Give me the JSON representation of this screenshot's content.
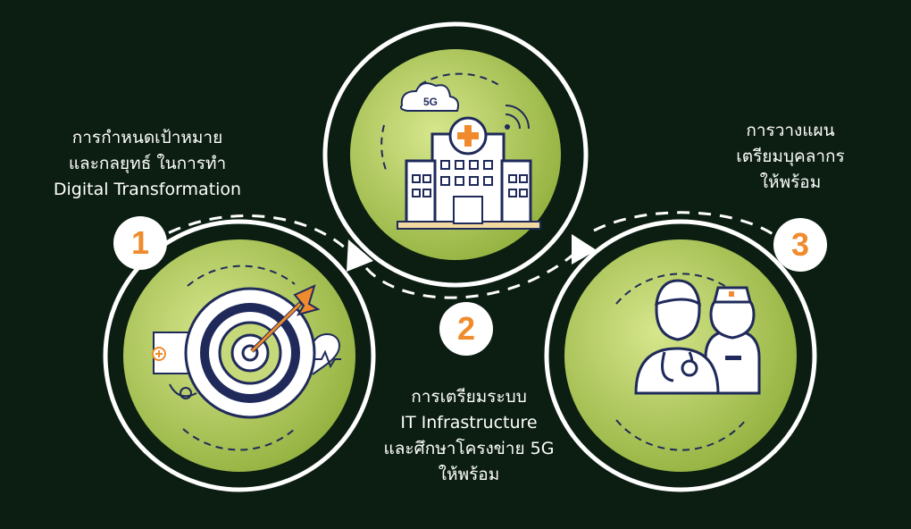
{
  "steps": [
    {
      "number": "1",
      "lines": [
        "การกำหนดเป้าหมาย",
        "และกลยุทธ์ ในการทำ",
        "Digital Transformation"
      ],
      "icon": "target-arrow-icon"
    },
    {
      "number": "2",
      "lines": [
        "การเตรียมระบบ",
        "IT Infrastructure",
        "และศึกษาโครงข่าย 5G",
        "ให้พร้อม"
      ],
      "icon": "hospital-5g-icon",
      "icon_text": "5G"
    },
    {
      "number": "3",
      "lines": [
        "การวางแผน",
        "เตรียมบุคลากร",
        "ให้พร้อม"
      ],
      "icon": "doctor-nurse-icon"
    }
  ],
  "colors": {
    "background": "#0b1e11",
    "circle_light": "#cddf7e",
    "circle_dark": "#8fae3a",
    "accent": "#ef8b2c",
    "line": "#ffffff",
    "icon_stroke": "#1f2a5a"
  }
}
